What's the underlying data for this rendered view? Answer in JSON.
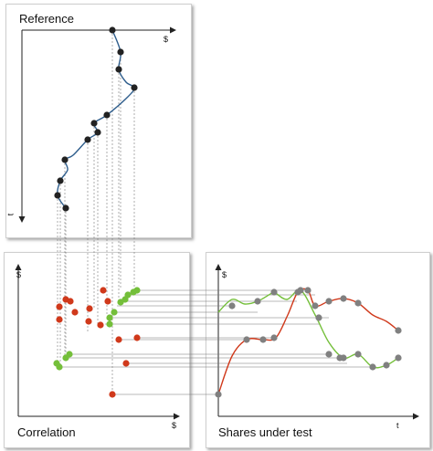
{
  "panels": {
    "reference": {
      "title": "Reference",
      "x_axis_label": "$",
      "y_axis_label": "t"
    },
    "correlation": {
      "title": "Correlation",
      "x_axis_label": "$",
      "y_axis_label": "$"
    },
    "shares": {
      "title": "Shares under test",
      "x_axis_label": "t",
      "y_axis_label": "$"
    }
  },
  "colors": {
    "reference_line": "#2e5d8c",
    "reference_point": "#222222",
    "red_series": "#d0391b",
    "green_series": "#74bf3a",
    "test_point": "#808080",
    "connector": "#777777"
  }
}
